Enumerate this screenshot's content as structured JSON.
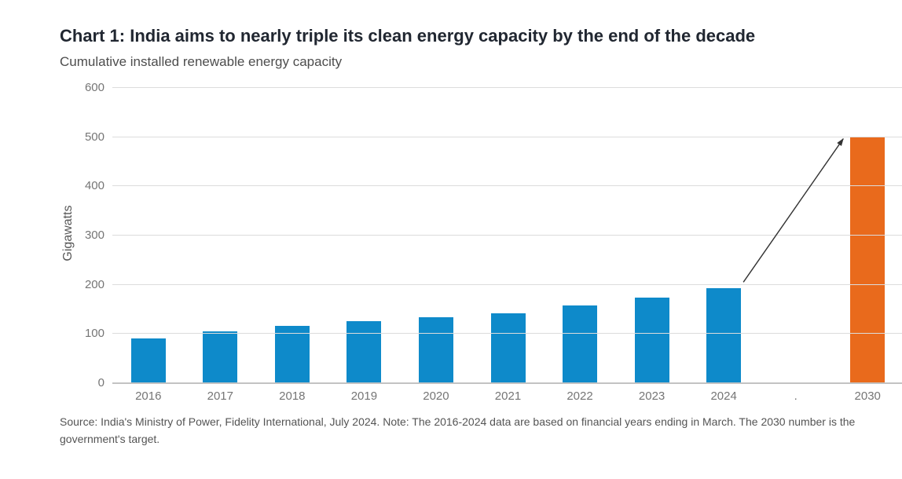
{
  "header": {
    "title": "Chart 1: India aims to nearly triple its clean energy capacity by the end of the decade",
    "subtitle": "Cumulative installed renewable energy capacity"
  },
  "footer": {
    "source_note": "Source: India's Ministry of Power, Fidelity International, July 2024. Note: The 2016-2024 data are based on financial years ending in March. The 2030 number is the government's target."
  },
  "colors": {
    "bar": "#0e8aca",
    "target_bar": "#e96a1c",
    "gridline": "#dcdcdc",
    "axis_line": "#c3c3c3",
    "arrow": "#333333",
    "tick_text": "#757575"
  },
  "chart_data": {
    "type": "bar",
    "title": "Chart 1: India aims to nearly triple its clean energy capacity by the end of the decade",
    "subtitle": "Cumulative installed renewable energy capacity",
    "ylabel": "Gigawatts",
    "xlabel": "",
    "categories": [
      "2016",
      "2017",
      "2018",
      "2019",
      "2020",
      "2021",
      "2022",
      "2023",
      "2024",
      ".",
      "2030"
    ],
    "values": [
      89,
      103,
      115,
      125,
      132,
      141,
      157,
      172,
      191,
      null,
      500
    ],
    "ylim": [
      0,
      600
    ],
    "yticks": [
      0,
      100,
      200,
      300,
      400,
      500,
      600
    ],
    "grid": true,
    "legend": false,
    "highlight_category": "2030",
    "annotation": {
      "type": "arrow",
      "from_category": "2024",
      "to_category": "2030"
    }
  }
}
